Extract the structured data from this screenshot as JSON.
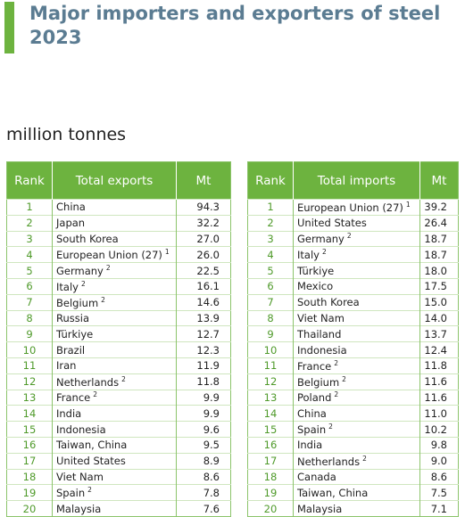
{
  "header": {
    "title": "Major importers and exporters of steel 2023",
    "unit": "million tonnes"
  },
  "exports": {
    "columns": [
      "Rank",
      "Total exports",
      "Mt"
    ],
    "rows": [
      {
        "rank": "1",
        "name": "China",
        "mt": "94.3"
      },
      {
        "rank": "2",
        "name": "Japan",
        "mt": "32.2"
      },
      {
        "rank": "3",
        "name": "South Korea",
        "mt": "27.0"
      },
      {
        "rank": "4",
        "name": "European Union (27)",
        "note": "1",
        "mt": "26.0"
      },
      {
        "rank": "5",
        "name": "Germany",
        "note": "2",
        "mt": "22.5"
      },
      {
        "rank": "6",
        "name": "Italy",
        "note": "2",
        "mt": "16.1"
      },
      {
        "rank": "7",
        "name": "Belgium",
        "note": "2",
        "mt": "14.6"
      },
      {
        "rank": "8",
        "name": "Russia",
        "mt": "13.9"
      },
      {
        "rank": "9",
        "name": "Türkiye",
        "mt": "12.7"
      },
      {
        "rank": "10",
        "name": "Brazil",
        "mt": "12.3"
      },
      {
        "rank": "11",
        "name": "Iran",
        "mt": "11.9"
      },
      {
        "rank": "12",
        "name": "Netherlands",
        "note": "2",
        "mt": "11.8"
      },
      {
        "rank": "13",
        "name": "France",
        "note": "2",
        "mt": "9.9"
      },
      {
        "rank": "14",
        "name": "India",
        "mt": "9.9"
      },
      {
        "rank": "15",
        "name": "Indonesia",
        "mt": "9.6"
      },
      {
        "rank": "16",
        "name": "Taiwan, China",
        "mt": "9.5"
      },
      {
        "rank": "17",
        "name": "United States",
        "mt": "8.9"
      },
      {
        "rank": "18",
        "name": "Viet Nam",
        "mt": "8.6"
      },
      {
        "rank": "19",
        "name": "Spain",
        "note": "2",
        "mt": "7.8"
      },
      {
        "rank": "20",
        "name": "Malaysia",
        "mt": "7.6"
      }
    ]
  },
  "imports": {
    "columns": [
      "Rank",
      "Total imports",
      "Mt"
    ],
    "rows": [
      {
        "rank": "1",
        "name": "European Union (27)",
        "note": "1",
        "mt": "39.2"
      },
      {
        "rank": "2",
        "name": "United States",
        "mt": "26.4"
      },
      {
        "rank": "3",
        "name": "Germany",
        "note": "2",
        "mt": "18.7"
      },
      {
        "rank": "4",
        "name": "Italy",
        "note": "2",
        "mt": "18.7"
      },
      {
        "rank": "5",
        "name": "Türkiye",
        "mt": "18.0"
      },
      {
        "rank": "6",
        "name": "Mexico",
        "mt": "17.5"
      },
      {
        "rank": "7",
        "name": "South Korea",
        "mt": "15.0"
      },
      {
        "rank": "8",
        "name": "Viet Nam",
        "mt": "14.0"
      },
      {
        "rank": "9",
        "name": "Thailand",
        "mt": "13.7"
      },
      {
        "rank": "10",
        "name": "Indonesia",
        "mt": "12.4"
      },
      {
        "rank": "11",
        "name": "France",
        "note": "2",
        "mt": "11.8"
      },
      {
        "rank": "12",
        "name": "Belgium",
        "note": "2",
        "mt": "11.6"
      },
      {
        "rank": "13",
        "name": "Poland",
        "note": "2",
        "mt": "11.6"
      },
      {
        "rank": "14",
        "name": "China",
        "mt": "11.0"
      },
      {
        "rank": "15",
        "name": "Spain",
        "note": "2",
        "mt": "10.2"
      },
      {
        "rank": "16",
        "name": "India",
        "mt": "9.8"
      },
      {
        "rank": "17",
        "name": "Netherlands",
        "note": "2",
        "mt": "9.0"
      },
      {
        "rank": "18",
        "name": "Canada",
        "mt": "8.6"
      },
      {
        "rank": "19",
        "name": "Taiwan, China",
        "mt": "7.5"
      },
      {
        "rank": "20",
        "name": "Malaysia",
        "mt": "7.1"
      }
    ]
  }
}
